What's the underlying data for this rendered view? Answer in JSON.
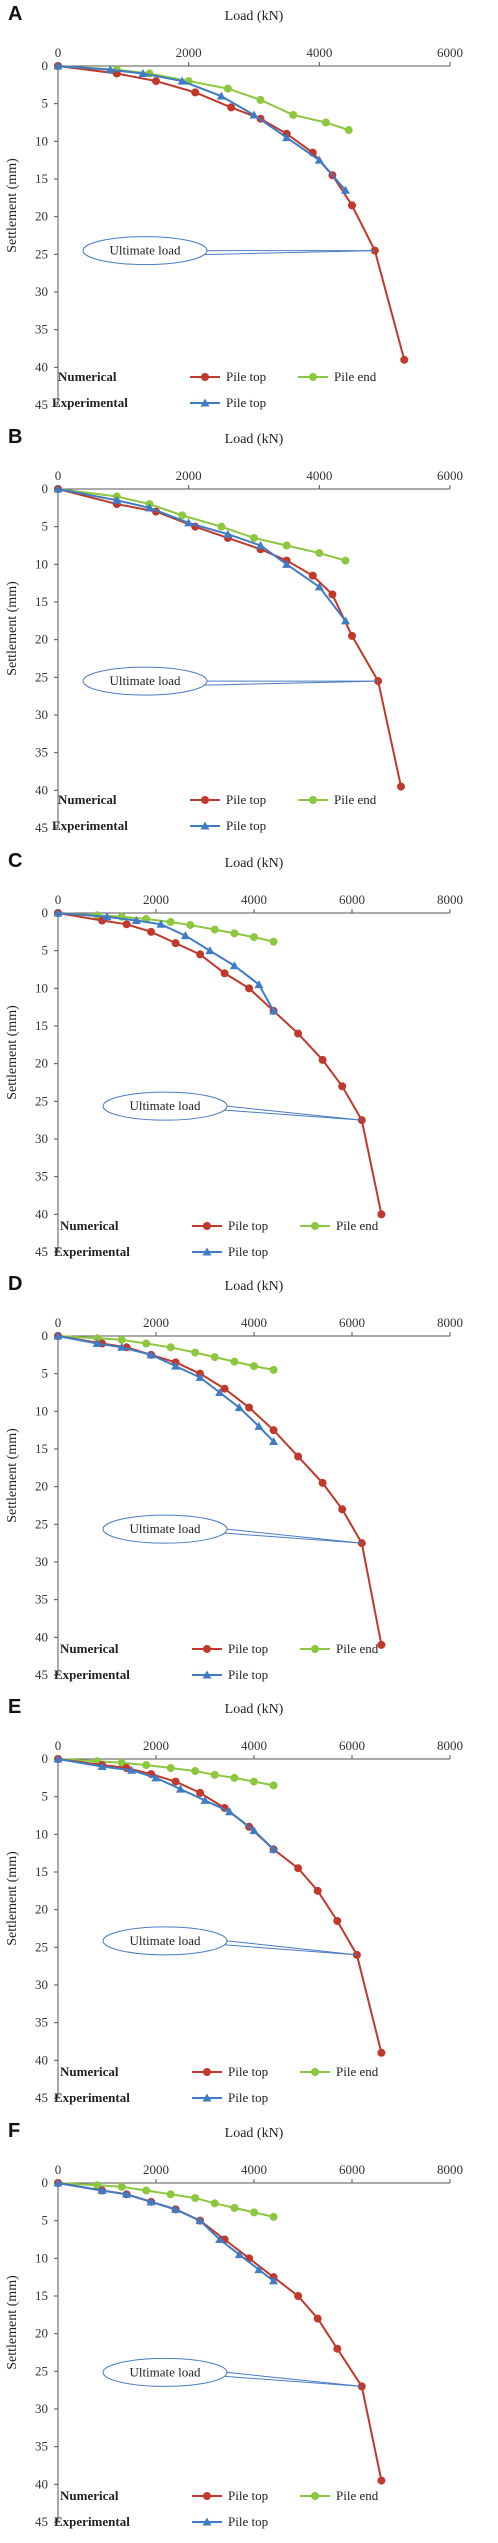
{
  "figure": {
    "colors": {
      "numerical_top": "#c0392b",
      "numerical_end": "#8dc63f",
      "experimental_top": "#3f7cc4",
      "callout": "#4a7bc4"
    },
    "legend_labels": {
      "numerical": "Numerical",
      "experimental": "Experimental",
      "pile_top": "Pile top",
      "pile_end": "Pile end"
    },
    "annotation": "Ultimate load"
  },
  "chart_data": [
    {
      "panel": "A",
      "type": "line",
      "xlabel": "Load (kN)",
      "ylabel": "Settlement (mm)",
      "xlim": [
        0,
        6000
      ],
      "ylim": [
        0,
        45
      ],
      "xticks": [
        0,
        2000,
        4000,
        6000
      ],
      "yticks": [
        0,
        5,
        10,
        15,
        20,
        25,
        30,
        35,
        40,
        45
      ],
      "ultimate_load_point": [
        4850,
        24.5
      ],
      "series": [
        {
          "name": "Pile top",
          "group": "Numerical",
          "color": "#c0392b",
          "marker": "circle",
          "x": [
            0,
            900,
            1500,
            2100,
            2650,
            3100,
            3500,
            3900,
            4200,
            4500,
            4850,
            5300
          ],
          "y": [
            0,
            1,
            2,
            3.5,
            5.5,
            7,
            9,
            11.5,
            14.5,
            18.5,
            24.5,
            39
          ]
        },
        {
          "name": "Pile end",
          "group": "Numerical",
          "color": "#8dc63f",
          "marker": "circle",
          "x": [
            0,
            900,
            1400,
            2000,
            2600,
            3100,
            3600,
            4100,
            4450
          ],
          "y": [
            0,
            0.5,
            1,
            2,
            3,
            4.5,
            6.5,
            7.5,
            8.5
          ]
        },
        {
          "name": "Pile top",
          "group": "Experimental",
          "color": "#3f7cc4",
          "marker": "triangle",
          "x": [
            0,
            800,
            1300,
            1900,
            2500,
            3000,
            3500,
            4000,
            4400
          ],
          "y": [
            0,
            0.5,
            1,
            2,
            4,
            6.5,
            9.5,
            12.5,
            16.5
          ]
        }
      ]
    },
    {
      "panel": "B",
      "type": "line",
      "xlabel": "Load (kN)",
      "ylabel": "Settlement (mm)",
      "xlim": [
        0,
        6000
      ],
      "ylim": [
        0,
        45
      ],
      "xticks": [
        0,
        2000,
        4000,
        6000
      ],
      "yticks": [
        0,
        5,
        10,
        15,
        20,
        25,
        30,
        35,
        40,
        45
      ],
      "ultimate_load_point": [
        4900,
        25.5
      ],
      "series": [
        {
          "name": "Pile top",
          "group": "Numerical",
          "color": "#c0392b",
          "marker": "circle",
          "x": [
            0,
            900,
            1500,
            2100,
            2600,
            3100,
            3500,
            3900,
            4200,
            4500,
            4900,
            5250
          ],
          "y": [
            0,
            2,
            3,
            5,
            6.5,
            8,
            9.5,
            11.5,
            14,
            19.5,
            25.5,
            39.5
          ]
        },
        {
          "name": "Pile end",
          "group": "Numerical",
          "color": "#8dc63f",
          "marker": "circle",
          "x": [
            0,
            900,
            1400,
            1900,
            2500,
            3000,
            3500,
            4000,
            4400
          ],
          "y": [
            0,
            1,
            2,
            3.5,
            5,
            6.5,
            7.5,
            8.5,
            9.5
          ]
        },
        {
          "name": "Pile top",
          "group": "Experimental",
          "color": "#3f7cc4",
          "marker": "triangle",
          "x": [
            0,
            900,
            1400,
            2000,
            2600,
            3100,
            3500,
            4000,
            4400
          ],
          "y": [
            0,
            1.5,
            2.5,
            4.5,
            6,
            7.5,
            10,
            13,
            17.5
          ]
        }
      ]
    },
    {
      "panel": "C",
      "type": "line",
      "xlabel": "Load (kN)",
      "ylabel": "Settlement (mm)",
      "xlim": [
        0,
        8000
      ],
      "ylim": [
        0,
        45
      ],
      "xticks": [
        0,
        2000,
        4000,
        6000,
        8000
      ],
      "yticks": [
        0,
        5,
        10,
        15,
        20,
        25,
        30,
        35,
        40,
        45
      ],
      "ultimate_load_point": [
        6200,
        27.5
      ],
      "series": [
        {
          "name": "Pile top",
          "group": "Numerical",
          "color": "#c0392b",
          "marker": "circle",
          "x": [
            0,
            900,
            1400,
            1900,
            2400,
            2900,
            3400,
            3900,
            4400,
            4900,
            5400,
            5800,
            6200,
            6600
          ],
          "y": [
            0,
            1,
            1.5,
            2.5,
            4,
            5.5,
            8,
            10,
            13,
            16,
            19.5,
            23,
            27.5,
            40
          ]
        },
        {
          "name": "Pile end",
          "group": "Numerical",
          "color": "#8dc63f",
          "marker": "circle",
          "x": [
            0,
            800,
            1300,
            1800,
            2300,
            2700,
            3200,
            3600,
            4000,
            4400
          ],
          "y": [
            0,
            0.3,
            0.5,
            0.8,
            1.2,
            1.6,
            2.2,
            2.7,
            3.2,
            3.8
          ]
        },
        {
          "name": "Pile top",
          "group": "Experimental",
          "color": "#3f7cc4",
          "marker": "triangle",
          "x": [
            0,
            1000,
            1600,
            2100,
            2600,
            3100,
            3600,
            4100,
            4400
          ],
          "y": [
            0,
            0.5,
            1,
            1.5,
            3,
            5,
            7,
            9.5,
            13
          ]
        }
      ]
    },
    {
      "panel": "D",
      "type": "line",
      "xlabel": "Load (kN)",
      "ylabel": "Settlement (mm)",
      "xlim": [
        0,
        8000
      ],
      "ylim": [
        0,
        45
      ],
      "xticks": [
        0,
        2000,
        4000,
        6000,
        8000
      ],
      "yticks": [
        0,
        5,
        10,
        15,
        20,
        25,
        30,
        35,
        40,
        45
      ],
      "ultimate_load_point": [
        6200,
        27.5
      ],
      "series": [
        {
          "name": "Pile top",
          "group": "Numerical",
          "color": "#c0392b",
          "marker": "circle",
          "x": [
            0,
            900,
            1400,
            1900,
            2400,
            2900,
            3400,
            3900,
            4400,
            4900,
            5400,
            5800,
            6200,
            6600
          ],
          "y": [
            0,
            1,
            1.5,
            2.5,
            3.5,
            5,
            7,
            9.5,
            12.5,
            16,
            19.5,
            23,
            27.5,
            41
          ]
        },
        {
          "name": "Pile end",
          "group": "Numerical",
          "color": "#8dc63f",
          "marker": "circle",
          "x": [
            0,
            800,
            1300,
            1800,
            2300,
            2800,
            3200,
            3600,
            4000,
            4400
          ],
          "y": [
            0,
            0.3,
            0.5,
            1,
            1.5,
            2.2,
            2.8,
            3.4,
            4,
            4.5
          ]
        },
        {
          "name": "Pile top",
          "group": "Experimental",
          "color": "#3f7cc4",
          "marker": "triangle",
          "x": [
            0,
            800,
            1300,
            1900,
            2400,
            2900,
            3300,
            3700,
            4100,
            4400
          ],
          "y": [
            0,
            1,
            1.5,
            2.5,
            4,
            5.5,
            7.5,
            9.5,
            12,
            14
          ]
        }
      ]
    },
    {
      "panel": "E",
      "type": "line",
      "xlabel": "Load (kN)",
      "ylabel": "Settlement (mm)",
      "xlim": [
        0,
        8000
      ],
      "ylim": [
        0,
        45
      ],
      "xticks": [
        0,
        2000,
        4000,
        6000,
        8000
      ],
      "yticks": [
        0,
        5,
        10,
        15,
        20,
        25,
        30,
        35,
        40,
        45
      ],
      "ultimate_load_point": [
        6100,
        26
      ],
      "series": [
        {
          "name": "Pile top",
          "group": "Numerical",
          "color": "#c0392b",
          "marker": "circle",
          "x": [
            0,
            900,
            1400,
            1900,
            2400,
            2900,
            3400,
            3900,
            4400,
            4900,
            5300,
            5700,
            6100,
            6600
          ],
          "y": [
            0,
            0.8,
            1.2,
            2,
            3,
            4.5,
            6.5,
            9,
            12,
            14.5,
            17.5,
            21.5,
            26,
            39
          ]
        },
        {
          "name": "Pile end",
          "group": "Numerical",
          "color": "#8dc63f",
          "marker": "circle",
          "x": [
            0,
            800,
            1300,
            1800,
            2300,
            2800,
            3200,
            3600,
            4000,
            4400
          ],
          "y": [
            0,
            0.3,
            0.5,
            0.8,
            1.2,
            1.6,
            2.1,
            2.5,
            3,
            3.5
          ]
        },
        {
          "name": "Pile top",
          "group": "Experimental",
          "color": "#3f7cc4",
          "marker": "triangle",
          "x": [
            0,
            900,
            1500,
            2000,
            2500,
            3000,
            3500,
            4000,
            4400
          ],
          "y": [
            0,
            1,
            1.5,
            2.5,
            4,
            5.5,
            7,
            9.5,
            12
          ]
        }
      ]
    },
    {
      "panel": "F",
      "type": "line",
      "xlabel": "Load (kN)",
      "ylabel": "Settlement (mm)",
      "xlim": [
        0,
        8000
      ],
      "ylim": [
        0,
        45
      ],
      "xticks": [
        0,
        2000,
        4000,
        6000,
        8000
      ],
      "yticks": [
        0,
        5,
        10,
        15,
        20,
        25,
        30,
        35,
        40,
        45
      ],
      "ultimate_load_point": [
        6200,
        27
      ],
      "series": [
        {
          "name": "Pile top",
          "group": "Numerical",
          "color": "#c0392b",
          "marker": "circle",
          "x": [
            0,
            900,
            1400,
            1900,
            2400,
            2900,
            3400,
            3900,
            4400,
            4900,
            5300,
            5700,
            6200,
            6600
          ],
          "y": [
            0,
            1,
            1.5,
            2.5,
            3.5,
            5,
            7.5,
            10,
            12.5,
            15,
            18,
            22,
            27,
            39.5
          ]
        },
        {
          "name": "Pile end",
          "group": "Numerical",
          "color": "#8dc63f",
          "marker": "circle",
          "x": [
            0,
            800,
            1300,
            1800,
            2300,
            2800,
            3200,
            3600,
            4000,
            4400
          ],
          "y": [
            0,
            0.3,
            0.5,
            1,
            1.5,
            2,
            2.7,
            3.3,
            3.9,
            4.5
          ]
        },
        {
          "name": "Pile top",
          "group": "Experimental",
          "color": "#3f7cc4",
          "marker": "triangle",
          "x": [
            0,
            900,
            1400,
            1900,
            2400,
            2900,
            3300,
            3700,
            4100,
            4400
          ],
          "y": [
            0,
            1,
            1.5,
            2.5,
            3.5,
            5,
            7.5,
            9.5,
            11.5,
            13
          ]
        }
      ]
    }
  ]
}
